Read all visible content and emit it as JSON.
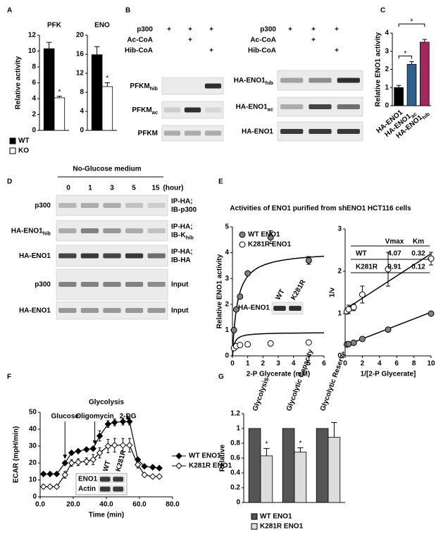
{
  "panel_letters": [
    "A",
    "B",
    "C",
    "D",
    "E",
    "F",
    "G"
  ],
  "chart_data": [
    {
      "type": "bar",
      "title": "PFK",
      "y_label": "Relative activity",
      "categories": [
        null
      ],
      "series": [
        {
          "name": "WT",
          "color": "#000000",
          "values": [
            10.3
          ],
          "errors": [
            0.8
          ]
        },
        {
          "name": "KO",
          "color": "#ffffff",
          "values": [
            4.1
          ],
          "errors": [
            0.2
          ],
          "significance": [
            "*"
          ]
        }
      ],
      "ylim": [
        0,
        12
      ],
      "yticks": [
        0,
        2,
        4,
        6,
        8,
        10,
        12
      ],
      "legend": "below"
    },
    {
      "type": "bar",
      "title": "ENO",
      "categories": [
        null
      ],
      "series": [
        {
          "color": "#000000",
          "values": [
            15.9
          ],
          "errors": [
            1.7
          ]
        },
        {
          "color": "#ffffff",
          "values": [
            9.2
          ],
          "errors": [
            0.8
          ],
          "significance": [
            "*"
          ]
        }
      ],
      "ylim": [
        0,
        20
      ],
      "yticks": [
        0,
        4,
        8,
        12,
        16,
        20
      ]
    },
    {
      "type": "bar",
      "y_label": "Relative ENO1 activity",
      "categories": [
        {
          "text": "HA-ENO1"
        },
        {
          "text": "HA-ENO1",
          "sub": "ac"
        },
        {
          "text": "HA-ENO1",
          "sub": "hib"
        }
      ],
      "values": [
        1.0,
        2.28,
        3.5
      ],
      "errors": [
        0.12,
        0.15,
        0.15
      ],
      "colors": [
        "#000000",
        "#2e5f8f",
        "#a3265d"
      ],
      "brackets": [
        {
          "from": 0,
          "to": 1,
          "text": "*"
        },
        {
          "from": 0,
          "to": 2,
          "text": "*"
        }
      ],
      "ylim": [
        0,
        4
      ],
      "yticks": [
        0,
        1,
        2,
        3,
        4
      ]
    },
    {
      "type": "scatter",
      "title": "Activities of ENO1 purified from shENO1 HCT116 cells",
      "x_label": "2-P Glycerate (mM)",
      "y_label": "Relative ENO1 activity",
      "fit": "michaelis-menten",
      "series": [
        {
          "name": "WT ENO1",
          "color": "#808080",
          "x": [
            0.1,
            0.25,
            0.5,
            1,
            2.5,
            5
          ],
          "values": [
            1.0,
            1.8,
            2.3,
            3.2,
            4.6,
            3.7
          ],
          "errors": [
            null,
            null,
            null,
            null,
            0.25,
            0.15
          ]
        },
        {
          "name": "K281R ENO1",
          "color": "#ffffff",
          "x": [
            0.1,
            0.25,
            0.5,
            1,
            2.5,
            5
          ],
          "values": [
            0.3,
            0.38,
            0.42,
            0.45,
            0.48,
            0.52
          ]
        }
      ],
      "xlim": [
        0,
        6
      ],
      "xticks": [
        0,
        1,
        2,
        3,
        4,
        5,
        6
      ],
      "ylim": [
        0,
        5
      ],
      "yticks": [
        0,
        1,
        2,
        3,
        4,
        5
      ],
      "legend": "upper left",
      "inset": {
        "row_label": "HA-ENO1",
        "lanes": [
          "WT",
          "K281R"
        ]
      }
    },
    {
      "type": "scatter",
      "x_label": "1/[2-P Glycerate]",
      "y_label": "1/v",
      "fit": "lineweaver-burk",
      "series": [
        {
          "color": "#808080",
          "x": [
            0.2,
            0.4,
            1,
            2,
            5,
            10
          ],
          "values": [
            0.27,
            0.28,
            0.31,
            0.4,
            0.62,
            1.0
          ]
        },
        {
          "color": "#ffffff",
          "x": [
            0.2,
            0.4,
            1,
            2,
            5,
            10
          ],
          "values": [
            1.05,
            1.1,
            1.15,
            1.45,
            2.05,
            2.3
          ],
          "errors": [
            0.05,
            0.1,
            0.08,
            0.2,
            0.4,
            0.15
          ]
        }
      ],
      "xlim": [
        0,
        10
      ],
      "xticks": [
        0,
        2,
        4,
        6,
        8,
        10
      ],
      "ylim": [
        0,
        3
      ],
      "yticks": [
        0,
        1,
        2,
        3
      ],
      "table": {
        "columns": [
          "Vmax",
          "Km"
        ],
        "rows": [
          {
            "name": "WT",
            "values": [
              4.07,
              0.32
            ]
          },
          {
            "name": "K281R",
            "values": [
              0.91,
              0.12
            ]
          }
        ]
      }
    },
    {
      "type": "line",
      "title": "Glycolysis",
      "x_label": "Time (min)",
      "y_label": "ECAR (mpH/min)",
      "x": [
        2,
        6,
        10,
        15,
        19,
        23,
        28,
        32,
        36,
        41,
        45,
        50,
        54,
        59,
        63,
        68,
        72
      ],
      "series": [
        {
          "name": "WT ENO1",
          "color": "#000000",
          "marker_fill": "#000000",
          "values": [
            13.5,
            13.5,
            13.5,
            20,
            26,
            27,
            28,
            28.5,
            36,
            43,
            44,
            44.5,
            44.5,
            22,
            18,
            17.5,
            17
          ],
          "errors": [
            1,
            1,
            1,
            1,
            1,
            1,
            1,
            1,
            3,
            2,
            2,
            2,
            2,
            1,
            1,
            1,
            1
          ]
        },
        {
          "name": "K281R ENO1",
          "color": "#000000",
          "marker_fill": "#ffffff",
          "values": [
            6,
            6,
            6,
            13,
            20,
            20.5,
            21,
            22,
            26,
            30,
            30.5,
            30.5,
            30.5,
            19,
            13,
            12,
            12
          ],
          "errors": [
            1,
            1,
            1,
            2,
            2,
            2,
            2,
            3,
            3,
            4,
            4,
            4,
            4,
            2,
            1,
            1,
            1
          ]
        }
      ],
      "xlim": [
        0,
        80
      ],
      "xticks": [
        {
          "value": 0,
          "label": "0.0"
        },
        {
          "value": 20,
          "label": "20.0"
        },
        {
          "value": 40,
          "label": "40.0"
        },
        {
          "value": 60,
          "label": "60.0"
        },
        {
          "value": 80,
          "label": "80.0"
        }
      ],
      "ylim": [
        0,
        50
      ],
      "yticks": [
        0,
        10,
        20,
        30,
        40,
        50
      ],
      "annotations": [
        {
          "text": "Glucose",
          "x": 15
        },
        {
          "text": "Oligomycin",
          "x": 33
        },
        {
          "text": "2-DG",
          "x": 53
        }
      ],
      "legend": "right",
      "inset": {
        "rows": [
          "ENO1",
          "Actin"
        ],
        "lanes": [
          "WT",
          "K281R"
        ]
      }
    },
    {
      "type": "bar",
      "y_label": "Relative",
      "categories": [
        "Glycolysis",
        "Glycolytic Capacity",
        "Glycolytic Reserve"
      ],
      "series": [
        {
          "name": "WT ENO1",
          "color": "#555555",
          "values": [
            1,
            1,
            1
          ]
        },
        {
          "name": "K281R ENO1",
          "color": "#dcdcdc",
          "values": [
            0.63,
            0.68,
            0.88
          ],
          "errors": [
            0.1,
            0.06,
            0.2
          ],
          "significance": [
            "*",
            "*",
            null
          ]
        }
      ],
      "ylim": [
        0,
        1.2
      ],
      "yticks": [
        0,
        0.2,
        0.4,
        0.6,
        0.8,
        1,
        1.2
      ],
      "legend": "below"
    }
  ],
  "blots": {
    "B": {
      "left": {
        "treatments": [
          {
            "label": "p300",
            "signs": [
              "+",
              "+",
              "+"
            ]
          },
          {
            "label": "Ac-CoA",
            "signs": [
              null,
              "+",
              null
            ]
          },
          {
            "label": "Hib-CoA",
            "signs": [
              null,
              null,
              "+"
            ]
          }
        ],
        "rows": [
          {
            "text": "PFKM",
            "sub": "hib"
          },
          {
            "text": "PFKM",
            "sub": "ac"
          },
          {
            "text": "PFKM"
          }
        ]
      },
      "right": {
        "treatments": [
          {
            "label": "p300",
            "signs": [
              "+",
              "+",
              "+"
            ]
          },
          {
            "label": "Ac-CoA",
            "signs": [
              null,
              "+",
              null
            ]
          },
          {
            "label": "Hib-CoA",
            "signs": [
              null,
              null,
              "+"
            ]
          }
        ],
        "rows": [
          {
            "text": "HA-ENO1",
            "sub": "hib"
          },
          {
            "text": "HA-ENO1",
            "sub": "ac"
          },
          {
            "text": "HA-ENO1"
          }
        ]
      }
    },
    "D": {
      "title": "No-Glucose medium",
      "times": [
        "0",
        "1",
        "3",
        "5",
        "15"
      ],
      "time_unit": "(hour)",
      "rows": [
        {
          "label": {
            "text": "p300"
          },
          "probe": [
            {
              "text": "IP-HA;"
            },
            {
              "text": "IB-p300"
            }
          ]
        },
        {
          "label": {
            "text": "HA-ENO1",
            "sub": "hib"
          },
          "probe": [
            {
              "text": "IP-HA;"
            },
            {
              "text": "IB-K",
              "sub": "hib"
            }
          ]
        },
        {
          "label": {
            "text": "HA-ENO1"
          },
          "probe": [
            {
              "text": "IP-HA;"
            },
            {
              "text": "IB-HA"
            }
          ]
        },
        {
          "label": {
            "text": "p300"
          },
          "probe": [
            {
              "text": "Input"
            }
          ]
        },
        {
          "label": {
            "text": "HA-ENO1"
          },
          "probe": [
            {
              "text": "Input"
            }
          ]
        }
      ]
    }
  }
}
